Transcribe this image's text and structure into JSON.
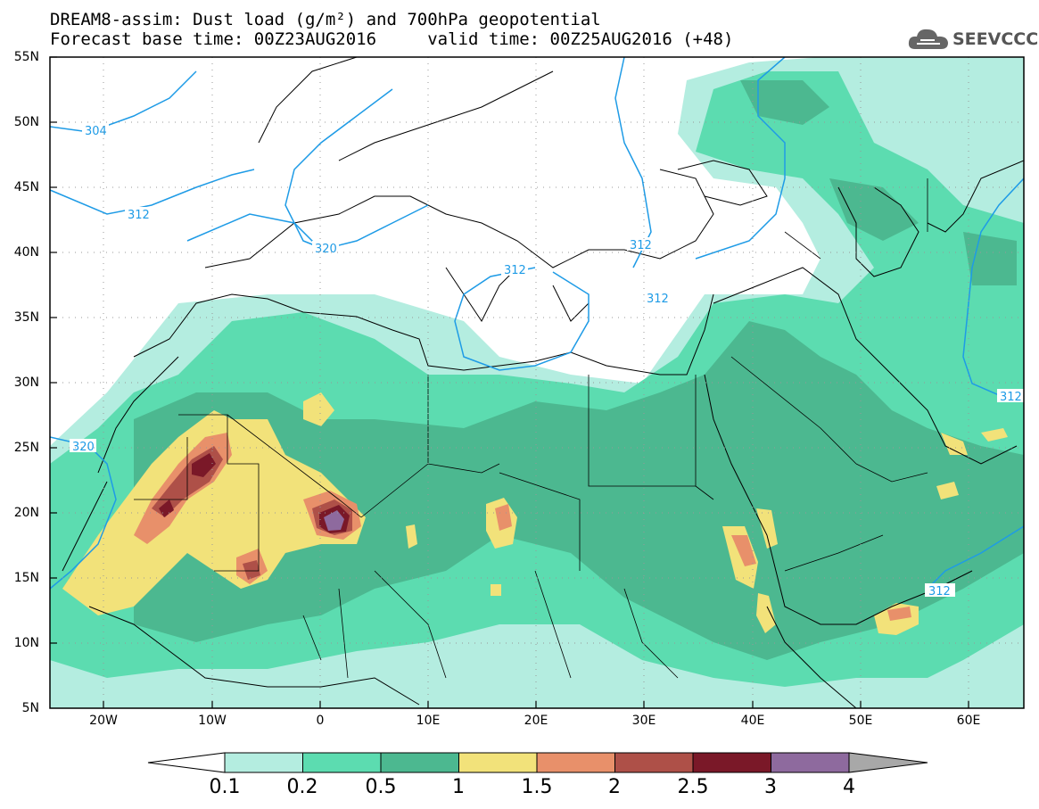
{
  "title": {
    "line1": "DREAM8-assim: Dust load (g/m²) and 700hPa geopotential",
    "line2": "Forecast base time: 00Z23AUG2016     valid time: 00Z25AUG2016 (+48)"
  },
  "logo": {
    "text": "SEEVCCC",
    "icon": "cloud-icon"
  },
  "map": {
    "lon_range": [
      -25,
      65
    ],
    "lat_range": [
      5,
      55
    ],
    "lat_labels": [
      "55N",
      "50N",
      "45N",
      "40N",
      "35N",
      "30N",
      "25N",
      "20N",
      "15N",
      "10N",
      "5N"
    ],
    "lon_labels": [
      "20W",
      "10W",
      "0",
      "10E",
      "20E",
      "30E",
      "40E",
      "50E",
      "60E"
    ],
    "contour_labels": [
      "304",
      "312",
      "320",
      "312",
      "312",
      "312",
      "320",
      "312",
      "312"
    ]
  },
  "colorbar": {
    "levels": [
      "0.1",
      "0.2",
      "0.5",
      "1",
      "1.5",
      "2",
      "2.5",
      "3",
      "4"
    ],
    "colors": [
      "#b4ede0",
      "#5cdcb0",
      "#4cb890",
      "#f2e27a",
      "#e8906a",
      "#ae5048",
      "#7a1828",
      "#8e6a9e",
      "#a8a8a8"
    ]
  }
}
